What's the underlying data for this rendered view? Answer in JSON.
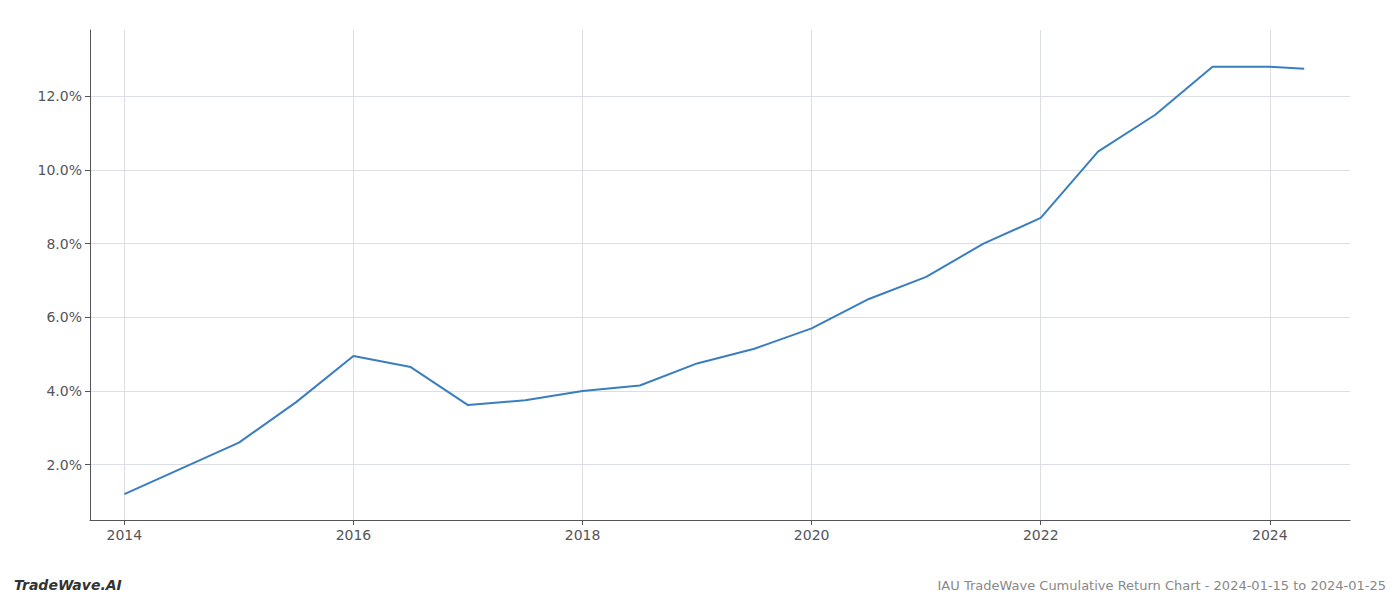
{
  "chart_data": {
    "type": "line",
    "x": [
      2014.0,
      2014.5,
      2015.0,
      2015.5,
      2016.0,
      2016.5,
      2017.0,
      2017.5,
      2018.0,
      2018.5,
      2019.0,
      2019.5,
      2020.0,
      2020.5,
      2021.0,
      2021.5,
      2022.0,
      2022.5,
      2023.0,
      2023.5,
      2024.0,
      2024.3
    ],
    "values": [
      1.2,
      1.9,
      2.6,
      3.7,
      4.95,
      4.65,
      3.62,
      3.75,
      4.0,
      4.15,
      4.75,
      5.15,
      5.7,
      6.5,
      7.1,
      8.0,
      8.7,
      10.5,
      11.5,
      12.8,
      12.8,
      12.75
    ],
    "color": "#3a7ebf",
    "xlim": [
      2013.7,
      2024.7
    ],
    "xticks": [
      2014,
      2016,
      2018,
      2020,
      2022,
      2024
    ],
    "ylim": [
      0.5,
      13.8
    ],
    "yticks": [
      {
        "value": 2.0,
        "label": "2.0%"
      },
      {
        "value": 4.0,
        "label": "4.0%"
      },
      {
        "value": 6.0,
        "label": "6.0%"
      },
      {
        "value": 8.0,
        "label": "8.0%"
      },
      {
        "value": 10.0,
        "label": "10.0%"
      },
      {
        "value": 12.0,
        "label": "12.0%"
      }
    ],
    "grid": true,
    "annotations": [
      "TradeWave.AI",
      "IAU TradeWave Cumulative Return Chart - 2024-01-15 to 2024-01-25"
    ]
  }
}
